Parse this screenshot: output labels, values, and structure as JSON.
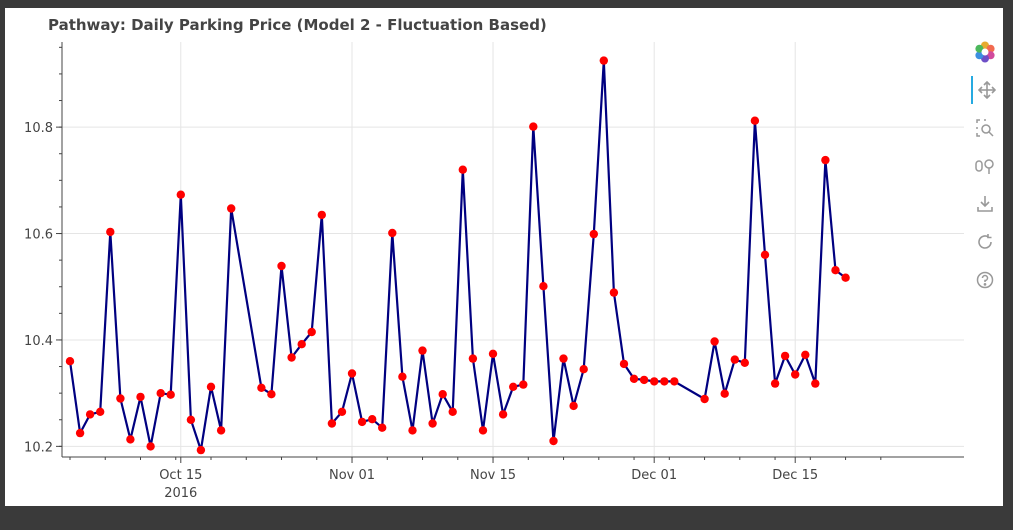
{
  "chart_data": {
    "type": "line",
    "title": "Pathway: Daily Parking Price (Model 2 - Fluctuation Based)",
    "x_axis": {
      "type": "datetime",
      "ticks": [
        {
          "date": "2016-10-15",
          "label": "Oct 15",
          "sublabel": "2016"
        },
        {
          "date": "2016-11-01",
          "label": "Nov 01"
        },
        {
          "date": "2016-11-15",
          "label": "Nov 15"
        },
        {
          "date": "2016-12-01",
          "label": "Dec 01"
        },
        {
          "date": "2016-12-15",
          "label": "Dec 15"
        }
      ],
      "range": [
        "2016-10-04",
        "2016-12-26"
      ]
    },
    "y_axis": {
      "ticks": [
        10.2,
        10.4,
        10.6,
        10.8
      ],
      "tick_labels": [
        "10.2",
        "10.4",
        "10.6",
        "10.8"
      ],
      "range": [
        10.18,
        10.96
      ]
    },
    "grid": true,
    "line_color": "#000080",
    "marker_color": "#ff0000",
    "series": [
      {
        "x": [
          "2016-10-04",
          "2016-10-05",
          "2016-10-06",
          "2016-10-07",
          "2016-10-08",
          "2016-10-09",
          "2016-10-10",
          "2016-10-11",
          "2016-10-12",
          "2016-10-13",
          "2016-10-14",
          "2016-10-15",
          "2016-10-16",
          "2016-10-17",
          "2016-10-18",
          "2016-10-19",
          "2016-10-20",
          "2016-10-23",
          "2016-10-24",
          "2016-10-25",
          "2016-10-26",
          "2016-10-27",
          "2016-10-28",
          "2016-10-29",
          "2016-10-30",
          "2016-10-31",
          "2016-11-01",
          "2016-11-02",
          "2016-11-03",
          "2016-11-04",
          "2016-11-05",
          "2016-11-06",
          "2016-11-07",
          "2016-11-08",
          "2016-11-09",
          "2016-11-10",
          "2016-11-11",
          "2016-11-12",
          "2016-11-13",
          "2016-11-14",
          "2016-11-15",
          "2016-11-16",
          "2016-11-17",
          "2016-11-18",
          "2016-11-19",
          "2016-11-20",
          "2016-11-21",
          "2016-11-22",
          "2016-11-23",
          "2016-11-24",
          "2016-11-25",
          "2016-11-26",
          "2016-11-27",
          "2016-11-28",
          "2016-11-29",
          "2016-11-30",
          "2016-12-01",
          "2016-12-02",
          "2016-12-03",
          "2016-12-06",
          "2016-12-07",
          "2016-12-08",
          "2016-12-09",
          "2016-12-10",
          "2016-12-11",
          "2016-12-12",
          "2016-12-13",
          "2016-12-14",
          "2016-12-15",
          "2016-12-16",
          "2016-12-17",
          "2016-12-18",
          "2016-12-19",
          "2016-12-20"
        ],
        "y": [
          10.36,
          10.225,
          10.26,
          10.265,
          10.603,
          10.29,
          10.213,
          10.293,
          10.2,
          10.3,
          10.297,
          10.673,
          10.25,
          10.193,
          10.312,
          10.23,
          10.647,
          10.31,
          10.298,
          10.539,
          10.367,
          10.392,
          10.415,
          10.635,
          10.243,
          10.265,
          10.337,
          10.246,
          10.251,
          10.235,
          10.601,
          10.331,
          10.23,
          10.38,
          10.243,
          10.298,
          10.265,
          10.72,
          10.365,
          10.23,
          10.374,
          10.26,
          10.312,
          10.316,
          10.801,
          10.501,
          10.21,
          10.365,
          10.276,
          10.345,
          10.599,
          10.925,
          10.489,
          10.355,
          10.327,
          10.325,
          10.322,
          10.322,
          10.322,
          10.289,
          10.397,
          10.299,
          10.363,
          10.357,
          10.812,
          10.56,
          10.318,
          10.37,
          10.335,
          10.372,
          10.318,
          10.738,
          10.531,
          10.517
        ]
      }
    ]
  },
  "toolbar": {
    "tools": [
      {
        "name": "bokeh-logo-icon",
        "title": "Bokeh",
        "active": false
      },
      {
        "name": "pan-icon",
        "title": "Pan",
        "active": true
      },
      {
        "name": "box-zoom-icon",
        "title": "Box Zoom",
        "active": false
      },
      {
        "name": "wheel-zoom-icon",
        "title": "Wheel Zoom",
        "active": false
      },
      {
        "name": "save-icon",
        "title": "Save",
        "active": false
      },
      {
        "name": "reset-icon",
        "title": "Reset",
        "active": false
      },
      {
        "name": "help-icon",
        "title": "Help",
        "active": false
      }
    ]
  }
}
